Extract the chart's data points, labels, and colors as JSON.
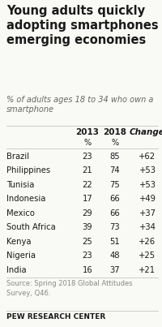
{
  "title": "Young adults quickly\nadopting smartphones in\nemerging economies",
  "subtitle": "% of adults ages 18 to 34 who own a\nsmartphone",
  "col_headers": [
    "2013",
    "2018",
    "Change"
  ],
  "col_subheaders": [
    "%",
    "%",
    ""
  ],
  "countries": [
    "Brazil",
    "Philippines",
    "Tunisia",
    "Indonesia",
    "Mexico",
    "South Africa",
    "Kenya",
    "Nigeria",
    "India"
  ],
  "val_2013": [
    23,
    21,
    22,
    17,
    29,
    39,
    25,
    23,
    16
  ],
  "val_2018": [
    85,
    74,
    75,
    66,
    66,
    73,
    51,
    48,
    37
  ],
  "change": [
    "+62",
    "+53",
    "+53",
    "+49",
    "+37",
    "+34",
    "+26",
    "+25",
    "+21"
  ],
  "source": "Source: Spring 2018 Global Attitudes\nSurvey, Q46.",
  "footer": "PEW RESEARCH CENTER",
  "bg_color": "#f9f9f6",
  "title_color": "#1a1a1a",
  "subtitle_color": "#666666",
  "header_color": "#1a1a1a",
  "text_color": "#1a1a1a",
  "change_color": "#1a1a1a",
  "source_color": "#888888",
  "divider_color": "#cccccc",
  "row_bg": "#ffffff"
}
